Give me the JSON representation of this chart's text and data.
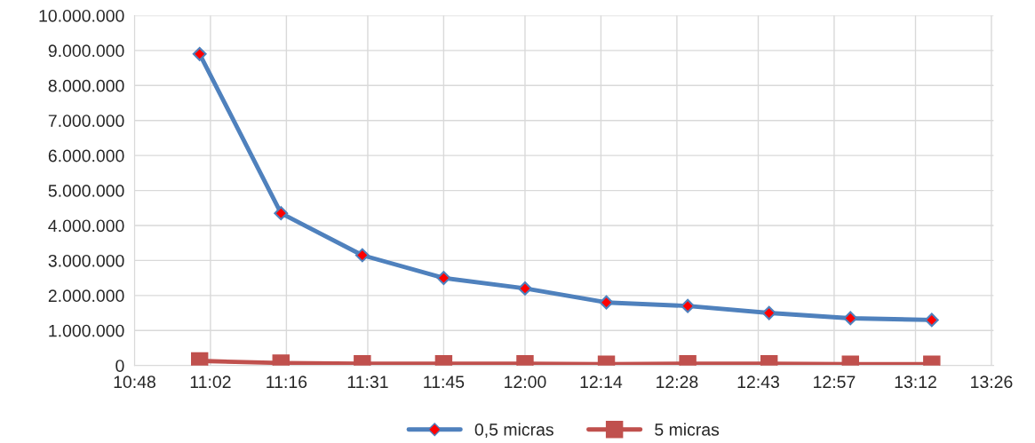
{
  "chart_data": {
    "type": "line",
    "x": [
      11.0,
      11.25,
      11.5,
      11.75,
      12.0,
      12.25,
      12.5,
      12.75,
      13.0,
      13.25
    ],
    "series": [
      {
        "name": "0,5 micras",
        "color": "#4f81bd",
        "marker": "diamond",
        "values": [
          8900000,
          4350000,
          3150000,
          2500000,
          2200000,
          1800000,
          1700000,
          1500000,
          1350000,
          1300000
        ]
      },
      {
        "name": "5 micras",
        "color": "#c0504d",
        "marker": "square",
        "values": [
          130000,
          70000,
          50000,
          50000,
          50000,
          40000,
          50000,
          50000,
          40000,
          40000
        ]
      }
    ],
    "xlim": [
      10.8,
      13.44
    ],
    "xticks": [
      {
        "value": 10.8,
        "label": "10:48"
      },
      {
        "value": 11.0333,
        "label": "11:02"
      },
      {
        "value": 11.2667,
        "label": "11:16"
      },
      {
        "value": 11.5167,
        "label": "11:31"
      },
      {
        "value": 11.75,
        "label": "11:45"
      },
      {
        "value": 12.0,
        "label": "12:00"
      },
      {
        "value": 12.2333,
        "label": "12:14"
      },
      {
        "value": 12.4667,
        "label": "12:28"
      },
      {
        "value": 12.7167,
        "label": "12:43"
      },
      {
        "value": 12.95,
        "label": "12:57"
      },
      {
        "value": 13.2,
        "label": "13:12"
      },
      {
        "value": 13.4333,
        "label": "13:26"
      }
    ],
    "ylim": [
      0,
      10000000
    ],
    "yticks": [
      {
        "value": 0,
        "label": "0"
      },
      {
        "value": 1000000,
        "label": "1.000.000"
      },
      {
        "value": 2000000,
        "label": "2.000.000"
      },
      {
        "value": 3000000,
        "label": "3.000.000"
      },
      {
        "value": 4000000,
        "label": "4.000.000"
      },
      {
        "value": 5000000,
        "label": "5.000.000"
      },
      {
        "value": 6000000,
        "label": "6.000.000"
      },
      {
        "value": 7000000,
        "label": "7.000.000"
      },
      {
        "value": 8000000,
        "label": "8.000.000"
      },
      {
        "value": 9000000,
        "label": "9.000.000"
      },
      {
        "value": 10000000,
        "label": "10.000.000"
      }
    ],
    "grid": true,
    "legend": "bottom",
    "line_style": "solid"
  }
}
